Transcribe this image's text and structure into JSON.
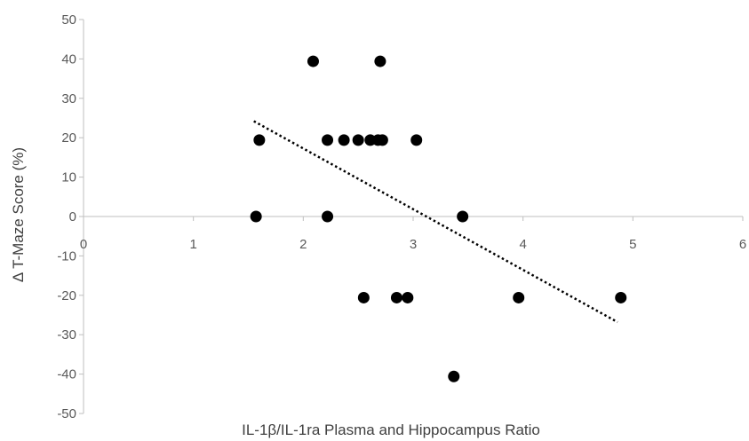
{
  "chart_data": {
    "type": "scatter",
    "xlabel": "IL-1β/IL-1ra Plasma and Hippocampus Ratio",
    "ylabel": "Δ T-Maze Score (%)",
    "xlim": [
      0,
      6
    ],
    "ylim": [
      -50,
      50
    ],
    "xticks": [
      "0",
      "1",
      "2",
      "3",
      "4",
      "5",
      "6"
    ],
    "yticks": [
      "50",
      "40",
      "30",
      "20",
      "10",
      "0",
      "-10",
      "-20",
      "-30",
      "-40",
      "-50"
    ],
    "grid": false,
    "legend": "none",
    "marker_color": "#000000",
    "axis_color": "#bfbfbf",
    "points": [
      {
        "x": 1.57,
        "y": 0
      },
      {
        "x": 1.6,
        "y": 19.4
      },
      {
        "x": 2.09,
        "y": 39.4
      },
      {
        "x": 2.22,
        "y": 0
      },
      {
        "x": 2.22,
        "y": 19.4
      },
      {
        "x": 2.37,
        "y": 19.4
      },
      {
        "x": 2.5,
        "y": 19.4
      },
      {
        "x": 2.55,
        "y": -20.6
      },
      {
        "x": 2.61,
        "y": 19.4
      },
      {
        "x": 2.68,
        "y": 19.4
      },
      {
        "x": 2.7,
        "y": 39.4
      },
      {
        "x": 2.72,
        "y": 19.4
      },
      {
        "x": 2.85,
        "y": -20.6
      },
      {
        "x": 2.95,
        "y": -20.6
      },
      {
        "x": 3.03,
        "y": 19.4
      },
      {
        "x": 3.37,
        "y": -40.6
      },
      {
        "x": 3.45,
        "y": 0
      },
      {
        "x": 3.96,
        "y": -20.6
      },
      {
        "x": 4.89,
        "y": -20.6
      }
    ],
    "trendline": {
      "style": "dotted",
      "from": {
        "x": 1.55,
        "y": 24.2
      },
      "to": {
        "x": 4.86,
        "y": -26.8
      }
    }
  }
}
